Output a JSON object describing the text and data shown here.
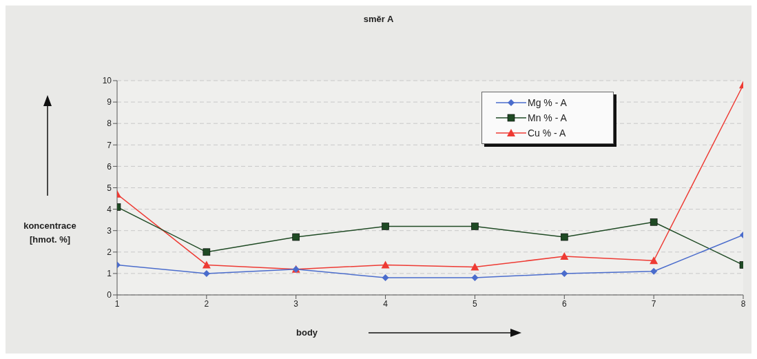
{
  "chart_data": {
    "type": "line",
    "title": "směr A",
    "xlabel": "body",
    "ylabel": "koncentrace\n[hmot. %]",
    "x": [
      1,
      2,
      3,
      4,
      5,
      6,
      7,
      8
    ],
    "series": [
      {
        "name": "Mg % - A",
        "color": "#4a6ccc",
        "marker": "diamond",
        "values": [
          1.4,
          1.0,
          1.2,
          0.8,
          0.8,
          1.0,
          1.1,
          2.8
        ]
      },
      {
        "name": "Mn % - A",
        "color": "#1f4a24",
        "marker": "square",
        "values": [
          4.1,
          2.0,
          2.7,
          3.2,
          3.2,
          2.7,
          3.4,
          1.4
        ]
      },
      {
        "name": "Cu % - A",
        "color": "#ee3a33",
        "marker": "triangle",
        "values": [
          4.7,
          1.4,
          1.2,
          1.4,
          1.3,
          1.8,
          1.6,
          9.8
        ]
      }
    ],
    "xlim": [
      1,
      8
    ],
    "xticks": [
      1,
      2,
      3,
      4,
      5,
      6,
      7,
      8
    ],
    "ylim": [
      0,
      10
    ],
    "yticks": [
      0,
      1,
      2,
      3,
      4,
      5,
      6,
      7,
      8,
      9,
      10
    ],
    "grid": "y",
    "legend": "top right",
    "line_style": "solid"
  }
}
